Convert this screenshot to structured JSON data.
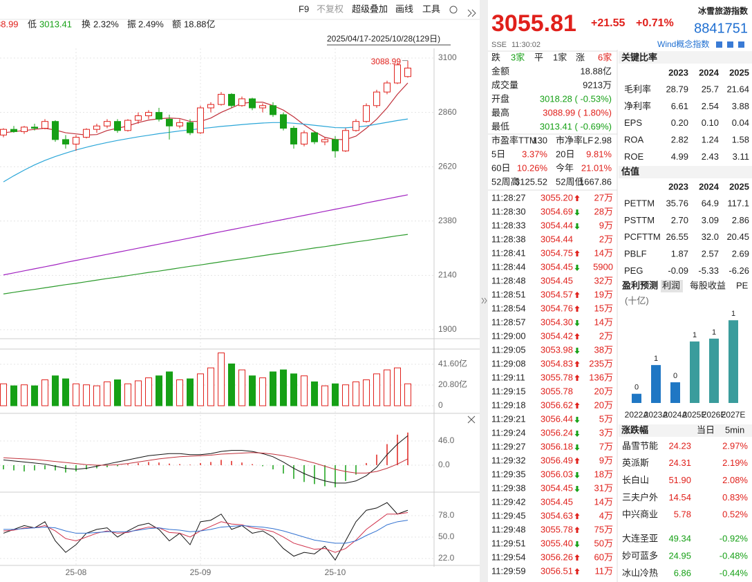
{
  "toolbar": {
    "items": [
      "F9",
      "不复权",
      "超级叠加",
      "画线",
      "工具"
    ]
  },
  "quote_bar": {
    "high_partial": "88.99",
    "low_label": "低",
    "low": "3013.41",
    "turnover_label": "换",
    "turnover": "2.32%",
    "amplitude_label": "振",
    "amplitude": "2.49%",
    "amount_label": "额",
    "amount": "18.88亿"
  },
  "date_range": "2025/04/17-2025/10/28(129日)",
  "kline": {
    "type": "candlestick",
    "categories": [
      null,
      null,
      null,
      null,
      null,
      null,
      null,
      "25-08",
      null,
      null,
      null,
      null,
      null,
      null,
      null,
      null,
      null,
      null,
      null,
      "25-09",
      null,
      null,
      null,
      null,
      null,
      null,
      null,
      null,
      null,
      null,
      null,
      null,
      "25-10",
      null,
      null,
      null,
      null,
      null,
      null,
      null
    ],
    "open": [
      2760,
      2785,
      2775,
      2795,
      2790,
      2820,
      2740,
      2720,
      2750,
      2785,
      2800,
      2820,
      2780,
      2825,
      2845,
      2860,
      2830,
      2800,
      2815,
      2770,
      2880,
      2895,
      2940,
      2890,
      2920,
      2880,
      2890,
      2850,
      2790,
      2720,
      2770,
      2730,
      2740,
      2690,
      2780,
      2820,
      2890,
      2950,
      2990,
      3018.28
    ],
    "high": [
      2790,
      2800,
      2800,
      2810,
      2830,
      2825,
      2760,
      2760,
      2790,
      2810,
      2830,
      2830,
      2830,
      2860,
      2870,
      2880,
      2850,
      2830,
      2830,
      2890,
      2905,
      2950,
      2945,
      2930,
      2925,
      2900,
      2905,
      2860,
      2800,
      2780,
      2775,
      2750,
      2755,
      2790,
      2830,
      2900,
      2960,
      3000,
      3080,
      3088.99
    ],
    "low": [
      2750,
      2770,
      2765,
      2780,
      2785,
      2730,
      2700,
      2690,
      2745,
      2770,
      2790,
      2770,
      2775,
      2810,
      2830,
      2820,
      2740,
      2790,
      2760,
      2765,
      2860,
      2890,
      2880,
      2885,
      2870,
      2860,
      2840,
      2780,
      2700,
      2710,
      2720,
      2715,
      2660,
      2685,
      2775,
      2815,
      2880,
      2940,
      2985,
      3013.41
    ],
    "close": [
      2785,
      2775,
      2795,
      2790,
      2820,
      2740,
      2720,
      2750,
      2785,
      2800,
      2820,
      2780,
      2825,
      2845,
      2860,
      2830,
      2800,
      2815,
      2770,
      2880,
      2895,
      2940,
      2890,
      2920,
      2880,
      2890,
      2850,
      2790,
      2720,
      2770,
      2730,
      2740,
      2690,
      2780,
      2820,
      2890,
      2950,
      2990,
      3070,
      3055.81
    ],
    "up_color": "#e0201b",
    "down_color": "#16a016",
    "ylim": [
      1870,
      3173
    ],
    "yticks": [
      1900,
      2140,
      2380,
      2620,
      2860,
      3100
    ],
    "max_label": "3088.99",
    "ma": [
      {
        "color": "#c0303a",
        "values": [
          2770,
          2775,
          2780,
          2785,
          2790,
          2782,
          2770,
          2765,
          2760,
          2762,
          2780,
          2790,
          2800,
          2815,
          2826,
          2832,
          2835,
          2833,
          2820,
          2820,
          2835,
          2860,
          2880,
          2900,
          2905,
          2905,
          2890,
          2870,
          2840,
          2805,
          2775,
          2750,
          2740,
          2740,
          2755,
          2790,
          2830,
          2880,
          2940,
          2990
        ]
      },
      {
        "color": "#2aa6d8",
        "values": [
          2553,
          2580,
          2605,
          2628,
          2648,
          2665,
          2680,
          2694,
          2706,
          2717,
          2727,
          2736,
          2744,
          2752,
          2759,
          2766,
          2772,
          2778,
          2783,
          2788,
          2793,
          2798,
          2802,
          2806,
          2810,
          2813,
          2815,
          2815,
          2812,
          2808,
          2803,
          2798,
          2793,
          2792,
          2795,
          2800,
          2808,
          2816,
          2824,
          2831
        ]
      },
      {
        "color": "#2a9a2a",
        "values": [
          2058,
          2065,
          2072,
          2078,
          2085,
          2092,
          2099,
          2105,
          2112,
          2119,
          2126,
          2132,
          2139,
          2146,
          2153,
          2159,
          2166,
          2173,
          2180,
          2186,
          2193,
          2200,
          2207,
          2213,
          2220,
          2227,
          2234,
          2240,
          2247,
          2254,
          2261,
          2267,
          2274,
          2281,
          2288,
          2294,
          2301,
          2308,
          2315,
          2321
        ]
      },
      {
        "color": "#a020c0",
        "values": [
          2142,
          2151,
          2160,
          2169,
          2178,
          2187,
          2197,
          2206,
          2215,
          2224,
          2233,
          2242,
          2251,
          2260,
          2269,
          2278,
          2287,
          2296,
          2305,
          2314,
          2324,
          2333,
          2342,
          2351,
          2360,
          2369,
          2378,
          2387,
          2396,
          2405,
          2414,
          2423,
          2432,
          2441,
          2450,
          2460,
          2469,
          2478,
          2487,
          2496
        ]
      }
    ]
  },
  "volume": {
    "type": "bar",
    "values": [
      22,
      20,
      21,
      20,
      26,
      30,
      27,
      22,
      21,
      20,
      24,
      26,
      22,
      25,
      28,
      30,
      34,
      26,
      27,
      32,
      38,
      53,
      42,
      36,
      30,
      28,
      34,
      36,
      32,
      30,
      24,
      20,
      22,
      21,
      24,
      26,
      32,
      36,
      38,
      22
    ],
    "ylim": [
      0,
      55
    ],
    "yticks": [
      0,
      {
        "value": 20.8,
        "label": "20.80亿"
      },
      {
        "value": 41.6,
        "label": "41.60亿"
      }
    ]
  },
  "macd": {
    "type": "bar",
    "hist": [
      -8,
      -10,
      -12,
      -10,
      -8,
      -10,
      -14,
      -12,
      -8,
      -6,
      -4,
      -2,
      2,
      4,
      6,
      5,
      3,
      2,
      1,
      4,
      6,
      10,
      8,
      5,
      2,
      -2,
      -8,
      -16,
      -26,
      -32,
      -36,
      -40,
      -42,
      -30,
      -18,
      4,
      20,
      40,
      58,
      62
    ],
    "dif": [
      10,
      8,
      6,
      4,
      2,
      -2,
      -6,
      -8,
      -6,
      -2,
      2,
      6,
      10,
      14,
      18,
      20,
      22,
      22,
      20,
      20,
      22,
      26,
      28,
      28,
      26,
      22,
      16,
      6,
      -6,
      -16,
      -24,
      -30,
      -34,
      -34,
      -30,
      -20,
      -4,
      20,
      40,
      56
    ],
    "dea": [
      14,
      13,
      12,
      11,
      9,
      7,
      5,
      3,
      1,
      0,
      0,
      1,
      3,
      6,
      9,
      12,
      14,
      16,
      17,
      18,
      19,
      21,
      22,
      23,
      24,
      23,
      21,
      18,
      14,
      9,
      4,
      -2,
      -8,
      -12,
      -15,
      -15,
      -12,
      -6,
      2,
      12
    ],
    "ylim": [
      -45,
      78
    ],
    "yticks": [
      {
        "value": 0,
        "label": "0.0"
      },
      {
        "value": 46,
        "label": "46.0"
      }
    ]
  },
  "kdj": {
    "type": "line",
    "series": [
      {
        "color": "#111111",
        "values": [
          55,
          60,
          65,
          62,
          70,
          45,
          30,
          40,
          55,
          60,
          62,
          50,
          58,
          65,
          68,
          60,
          45,
          55,
          40,
          70,
          72,
          80,
          60,
          65,
          55,
          58,
          50,
          35,
          25,
          30,
          28,
          38,
          20,
          45,
          70,
          85,
          88,
          95,
          80,
          85
        ]
      },
      {
        "color": "#d0304a",
        "values": [
          58,
          59,
          62,
          62,
          65,
          58,
          48,
          45,
          50,
          55,
          58,
          55,
          56,
          60,
          63,
          62,
          56,
          55,
          50,
          58,
          64,
          70,
          67,
          66,
          62,
          60,
          57,
          50,
          42,
          38,
          34,
          35,
          30,
          35,
          46,
          60,
          70,
          80,
          80,
          82
        ]
      },
      {
        "color": "#3070d0",
        "values": [
          60,
          60,
          61,
          62,
          63,
          62,
          58,
          55,
          55,
          56,
          57,
          57,
          57,
          59,
          61,
          62,
          60,
          59,
          57,
          58,
          60,
          63,
          64,
          65,
          64,
          63,
          61,
          58,
          54,
          50,
          46,
          44,
          42,
          42,
          45,
          52,
          58,
          66,
          70,
          72
        ]
      }
    ],
    "ylim": [
      16,
      102
    ],
    "yticks": [
      {
        "value": 22,
        "label": "22.0"
      },
      {
        "value": 50,
        "label": "50.0"
      },
      {
        "value": 78,
        "label": "78.0"
      }
    ]
  },
  "header": {
    "price": "3055.81",
    "change": "+21.55",
    "pct": "+0.71%",
    "name": "冰雪旅游指数",
    "code": "8841751",
    "exchange": "SSE",
    "time": "11:30:02",
    "category": "Wind概念指数"
  },
  "breadth": [
    "跌",
    "3家",
    "平",
    "1家",
    "涨",
    "6家"
  ],
  "stats": [
    [
      "金额",
      "18.88亿"
    ],
    [
      "成交量",
      "9213万"
    ],
    [
      "开盘",
      "3018.28 ( -0.53%)"
    ],
    [
      "最高",
      "3088.99 ( 1.80%)"
    ],
    [
      "最低",
      "3013.41 ( -0.69%)"
    ]
  ],
  "pairs": [
    [
      "市盈率TTM",
      "130",
      "市净率LF",
      "2.98"
    ],
    [
      "5日",
      "3.37%",
      "20日",
      "9.81%"
    ],
    [
      "60日",
      "10.26%",
      "今年",
      "21.01%"
    ],
    [
      "52周高",
      "3125.52",
      "52周低",
      "1667.86"
    ]
  ],
  "trades": [
    [
      "11:28:27",
      "3055.20",
      "27万",
      "up"
    ],
    [
      "11:28:30",
      "3054.69",
      "28万",
      "down"
    ],
    [
      "11:28:33",
      "3054.44",
      "9万",
      "down"
    ],
    [
      "11:28:38",
      "3054.44",
      "2万",
      null
    ],
    [
      "11:28:41",
      "3054.75",
      "14万",
      "up"
    ],
    [
      "11:28:44",
      "3054.45",
      "5900",
      "down"
    ],
    [
      "11:28:48",
      "3054.45",
      "32万",
      null
    ],
    [
      "11:28:51",
      "3054.57",
      "19万",
      "up"
    ],
    [
      "11:28:54",
      "3054.76",
      "15万",
      "up"
    ],
    [
      "11:28:57",
      "3054.30",
      "14万",
      "down"
    ],
    [
      "11:29:00",
      "3054.42",
      "2万",
      "up"
    ],
    [
      "11:29:05",
      "3053.98",
      "38万",
      "down"
    ],
    [
      "11:29:08",
      "3054.83",
      "235万",
      "up"
    ],
    [
      "11:29:11",
      "3055.78",
      "136万",
      "up"
    ],
    [
      "11:29:15",
      "3055.78",
      "20万",
      null
    ],
    [
      "11:29:18",
      "3056.62",
      "20万",
      "up"
    ],
    [
      "11:29:21",
      "3056.44",
      "5万",
      "down"
    ],
    [
      "11:29:24",
      "3056.24",
      "3万",
      "down"
    ],
    [
      "11:29:27",
      "3056.18",
      "7万",
      "down"
    ],
    [
      "11:29:32",
      "3056.49",
      "9万",
      "up"
    ],
    [
      "11:29:35",
      "3056.03",
      "18万",
      "down"
    ],
    [
      "11:29:38",
      "3054.45",
      "31万",
      "down"
    ],
    [
      "11:29:42",
      "3054.45",
      "14万",
      null
    ],
    [
      "11:29:45",
      "3054.63",
      "4万",
      "up"
    ],
    [
      "11:29:48",
      "3055.78",
      "75万",
      "up"
    ],
    [
      "11:29:51",
      "3055.40",
      "50万",
      "down"
    ],
    [
      "11:29:54",
      "3056.26",
      "60万",
      "up"
    ],
    [
      "11:29:59",
      "3056.51",
      "11万",
      "up"
    ]
  ],
  "key_ratios": {
    "title": "关键比率",
    "years": [
      "2023",
      "2024",
      "2025"
    ],
    "rows": [
      [
        "毛利率",
        "28.79",
        "25.7",
        "21.64"
      ],
      [
        "净利率",
        "6.61",
        "2.54",
        "3.88"
      ],
      [
        "EPS",
        "0.20",
        "0.10",
        "0.04"
      ],
      [
        "ROA",
        "2.82",
        "1.24",
        "1.58"
      ],
      [
        "ROE",
        "4.99",
        "2.43",
        "3.11"
      ]
    ]
  },
  "valuation": {
    "title": "估值",
    "years": [
      "2023",
      "2024",
      "2025"
    ],
    "rows": [
      [
        "PETTM",
        "35.76",
        "64.9",
        "117.1"
      ],
      [
        "PSTTM",
        "2.70",
        "3.09",
        "2.86"
      ],
      [
        "PCFTTM",
        "26.55",
        "32.0",
        "20.45"
      ],
      [
        "PBLF",
        "1.87",
        "2.57",
        "2.69"
      ],
      [
        "PEG",
        "-0.09",
        "-5.33",
        "-6.26"
      ]
    ]
  },
  "forecast": {
    "type": "bar",
    "tabs": [
      "盈利预测",
      "利润",
      "每股收益",
      "PE"
    ],
    "unit": "(十亿)",
    "categories": [
      "2022A",
      "2023A",
      "2024A",
      "2025E",
      "2026E",
      "2027E"
    ],
    "values": [
      0.16,
      0.66,
      0.36,
      1.07,
      1.12,
      1.44
    ],
    "value_labels": [
      "0",
      "1",
      "0",
      "1",
      "1",
      "1"
    ],
    "colors": [
      "#1f77c4",
      "#1f77c4",
      "#1f77c4",
      "#3a9c9c",
      "#3a9c9c",
      "#3a9c9c"
    ],
    "ylim": [
      0,
      1.6
    ]
  },
  "movers": {
    "title": "涨跌幅",
    "tabs": [
      "当日",
      "5min"
    ],
    "rows": [
      [
        "晶雪节能",
        "24.23",
        "2.97%"
      ],
      [
        "英派斯",
        "24.31",
        "2.19%"
      ],
      [
        "长白山",
        "51.90",
        "2.08%"
      ],
      [
        "三夫户外",
        "14.54",
        "0.83%"
      ],
      [
        "中兴商业",
        "5.78",
        "0.52%"
      ],
      [
        "大连圣亚",
        "49.34",
        "-0.92%"
      ],
      [
        "妙可蓝多",
        "24.95",
        "-0.48%"
      ],
      [
        "冰山冷热",
        "6.86",
        "-0.44%"
      ]
    ]
  }
}
